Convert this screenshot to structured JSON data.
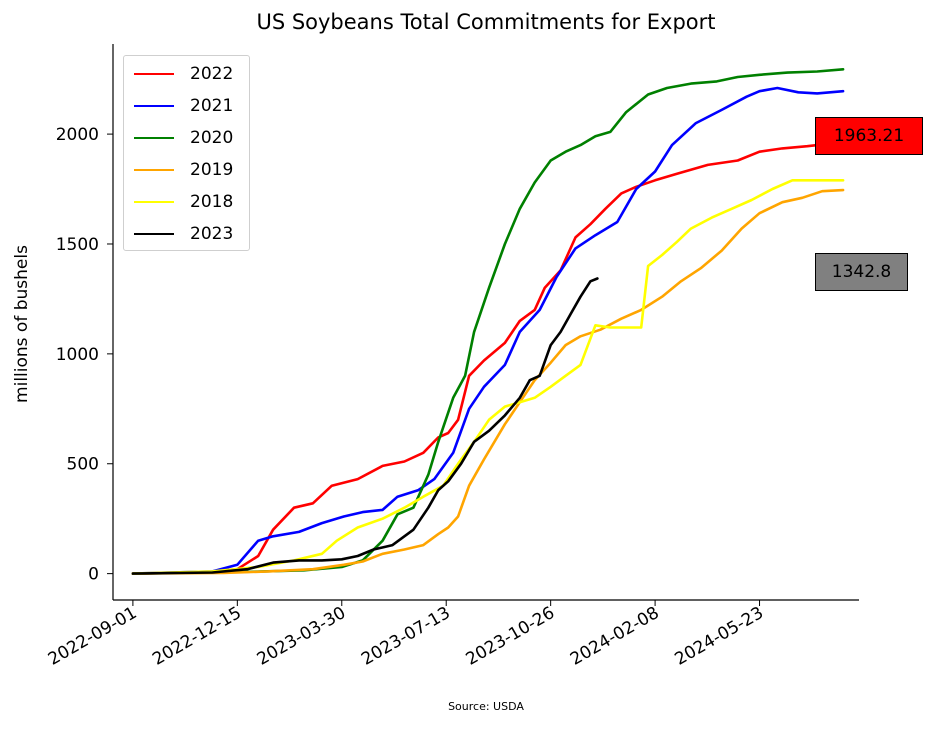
{
  "chart_data": {
    "type": "line",
    "title": "US Soybeans Total Commitments for Export",
    "ylabel": "millions of bushels",
    "xlabel": "",
    "source": "Source: USDA",
    "ylim": [
      -120,
      2410
    ],
    "xlim": [
      "2022-08-12",
      "2024-08-31"
    ],
    "x_ticks": [
      "2022-09-01",
      "2022-12-15",
      "2023-03-30",
      "2023-07-13",
      "2023-10-26",
      "2024-02-08",
      "2024-05-23"
    ],
    "y_ticks": [
      0,
      500,
      1000,
      1500,
      2000
    ],
    "grid": false,
    "legend_position": "upper-left",
    "series": [
      {
        "name": "2022",
        "color": "#ff0000",
        "x": [
          "2022-09-01",
          "2022-11-10",
          "2022-12-15",
          "2023-01-05",
          "2023-01-20",
          "2023-02-10",
          "2023-03-01",
          "2023-03-20",
          "2023-04-15",
          "2023-05-10",
          "2023-06-01",
          "2023-06-20",
          "2023-07-05",
          "2023-07-15",
          "2023-07-25",
          "2023-08-05",
          "2023-08-20",
          "2023-09-10",
          "2023-09-25",
          "2023-10-10",
          "2023-10-20",
          "2023-11-05",
          "2023-11-20",
          "2023-12-05",
          "2023-12-20",
          "2024-01-05",
          "2024-01-20",
          "2024-02-08",
          "2024-03-01",
          "2024-04-01",
          "2024-05-01",
          "2024-05-23",
          "2024-06-15",
          "2024-07-10",
          "2024-08-15"
        ],
        "y": [
          0,
          5,
          20,
          80,
          200,
          300,
          320,
          400,
          430,
          490,
          510,
          550,
          620,
          640,
          700,
          900,
          970,
          1050,
          1150,
          1200,
          1300,
          1380,
          1530,
          1590,
          1660,
          1730,
          1760,
          1790,
          1820,
          1860,
          1880,
          1920,
          1935,
          1945,
          1963
        ]
      },
      {
        "name": "2021",
        "color": "#0000ff",
        "x": [
          "2022-09-01",
          "2022-11-20",
          "2022-12-15",
          "2023-01-05",
          "2023-01-20",
          "2023-02-15",
          "2023-03-10",
          "2023-04-01",
          "2023-04-20",
          "2023-05-10",
          "2023-05-25",
          "2023-06-15",
          "2023-07-01",
          "2023-07-20",
          "2023-08-05",
          "2023-08-20",
          "2023-09-10",
          "2023-09-25",
          "2023-10-15",
          "2023-11-01",
          "2023-11-20",
          "2023-12-10",
          "2024-01-01",
          "2024-01-20",
          "2024-02-08",
          "2024-02-25",
          "2024-03-20",
          "2024-04-15",
          "2024-05-10",
          "2024-05-23",
          "2024-06-10",
          "2024-07-01",
          "2024-07-20",
          "2024-08-15"
        ],
        "y": [
          0,
          10,
          40,
          150,
          170,
          190,
          230,
          260,
          280,
          290,
          350,
          380,
          430,
          550,
          750,
          850,
          950,
          1100,
          1200,
          1350,
          1480,
          1540,
          1600,
          1750,
          1830,
          1950,
          2050,
          2110,
          2170,
          2195,
          2210,
          2190,
          2185,
          2195
        ]
      },
      {
        "name": "2020",
        "color": "#008000",
        "x": [
          "2022-09-01",
          "2022-12-01",
          "2023-01-10",
          "2023-02-20",
          "2023-03-30",
          "2023-04-20",
          "2023-05-10",
          "2023-05-25",
          "2023-06-10",
          "2023-06-25",
          "2023-07-05",
          "2023-07-20",
          "2023-08-01",
          "2023-08-10",
          "2023-08-25",
          "2023-09-10",
          "2023-09-25",
          "2023-10-10",
          "2023-10-26",
          "2023-11-10",
          "2023-11-25",
          "2023-12-10",
          "2023-12-25",
          "2024-01-10",
          "2024-02-01",
          "2024-02-20",
          "2024-03-15",
          "2024-04-10",
          "2024-05-01",
          "2024-05-23",
          "2024-06-20",
          "2024-07-20",
          "2024-08-15"
        ],
        "y": [
          0,
          5,
          10,
          15,
          30,
          60,
          150,
          270,
          300,
          450,
          600,
          800,
          900,
          1100,
          1300,
          1500,
          1660,
          1780,
          1880,
          1920,
          1950,
          1990,
          2010,
          2100,
          2180,
          2210,
          2230,
          2240,
          2260,
          2270,
          2280,
          2285,
          2295
        ]
      },
      {
        "name": "2019",
        "color": "#ffa500",
        "x": [
          "2022-09-01",
          "2022-12-01",
          "2023-01-15",
          "2023-03-01",
          "2023-04-01",
          "2023-04-20",
          "2023-05-10",
          "2023-06-01",
          "2023-06-20",
          "2023-07-05",
          "2023-07-15",
          "2023-07-25",
          "2023-08-05",
          "2023-08-20",
          "2023-09-10",
          "2023-09-25",
          "2023-10-10",
          "2023-10-26",
          "2023-11-10",
          "2023-11-25",
          "2023-12-15",
          "2024-01-05",
          "2024-01-25",
          "2024-02-15",
          "2024-03-05",
          "2024-03-25",
          "2024-04-15",
          "2024-05-05",
          "2024-05-23",
          "2024-06-15",
          "2024-07-05",
          "2024-07-25",
          "2024-08-15"
        ],
        "y": [
          0,
          3,
          10,
          20,
          40,
          55,
          90,
          110,
          130,
          180,
          210,
          260,
          400,
          520,
          680,
          780,
          880,
          960,
          1040,
          1080,
          1110,
          1160,
          1200,
          1260,
          1330,
          1390,
          1470,
          1570,
          1640,
          1690,
          1710,
          1740,
          1745
        ]
      },
      {
        "name": "2018",
        "color": "#ffff00",
        "x": [
          "2022-09-01",
          "2022-11-20",
          "2023-01-05",
          "2023-02-10",
          "2023-03-10",
          "2023-03-25",
          "2023-04-15",
          "2023-05-10",
          "2023-06-01",
          "2023-06-20",
          "2023-07-10",
          "2023-07-25",
          "2023-08-10",
          "2023-08-25",
          "2023-09-10",
          "2023-09-25",
          "2023-10-10",
          "2023-10-26",
          "2023-11-10",
          "2023-11-25",
          "2023-12-10",
          "2023-12-25",
          "2024-01-10",
          "2024-01-25",
          "2024-02-01",
          "2024-02-15",
          "2024-03-01",
          "2024-03-15",
          "2024-04-05",
          "2024-04-25",
          "2024-05-15",
          "2024-06-05",
          "2024-06-25",
          "2024-07-15",
          "2024-08-15"
        ],
        "y": [
          0,
          10,
          30,
          60,
          90,
          150,
          210,
          250,
          300,
          350,
          400,
          500,
          600,
          700,
          760,
          780,
          800,
          850,
          900,
          950,
          1130,
          1120,
          1120,
          1120,
          1400,
          1450,
          1510,
          1570,
          1620,
          1660,
          1700,
          1750,
          1790,
          1790,
          1790
        ]
      },
      {
        "name": "2023",
        "color": "#000000",
        "x": [
          "2022-09-01",
          "2022-11-20",
          "2022-12-25",
          "2023-01-20",
          "2023-02-15",
          "2023-03-10",
          "2023-03-30",
          "2023-04-15",
          "2023-05-01",
          "2023-05-20",
          "2023-06-10",
          "2023-06-25",
          "2023-07-05",
          "2023-07-15",
          "2023-07-28",
          "2023-08-10",
          "2023-08-25",
          "2023-09-10",
          "2023-09-25",
          "2023-10-05",
          "2023-10-15",
          "2023-10-26",
          "2023-11-05",
          "2023-11-15",
          "2023-11-25",
          "2023-12-05",
          "2023-12-12"
        ],
        "y": [
          0,
          5,
          20,
          50,
          60,
          60,
          65,
          80,
          110,
          130,
          200,
          300,
          380,
          420,
          500,
          600,
          650,
          720,
          800,
          880,
          900,
          1040,
          1100,
          1180,
          1260,
          1330,
          1343
        ]
      }
    ],
    "end_labels": [
      {
        "series": "2022",
        "text": "1963.21",
        "color": "#ff0000"
      },
      {
        "series": "2023",
        "text": "1342.8",
        "color": "#808080"
      }
    ]
  }
}
